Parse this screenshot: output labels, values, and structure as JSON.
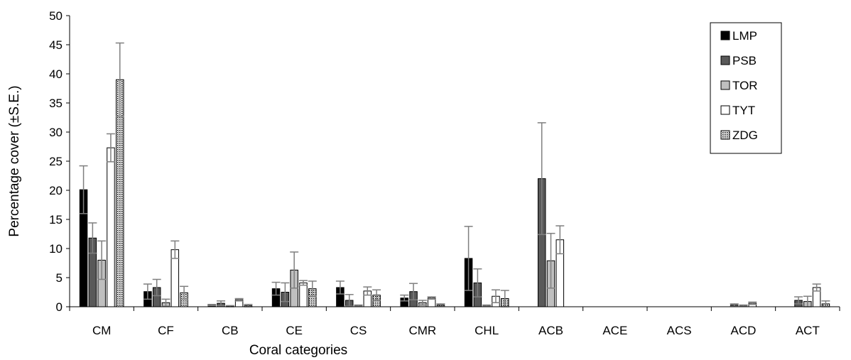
{
  "chart_data": {
    "type": "bar",
    "title": "",
    "xlabel": "Coral categories",
    "ylabel": "Percentage cover (±S.E.)",
    "ylim": [
      0,
      50
    ],
    "yticks": [
      "0",
      "5",
      "10",
      "15",
      "20",
      "25",
      "30",
      "35",
      "40",
      "45",
      "50"
    ],
    "grid": false,
    "legend_position": "top-right",
    "categories": [
      "CM",
      "CF",
      "CB",
      "CE",
      "CS",
      "CMR",
      "CHL",
      "ACB",
      "ACE",
      "ACS",
      "ACD",
      "ACT"
    ],
    "series": [
      {
        "name": "LMP",
        "fill": "#000000",
        "values": [
          20.1,
          2.6,
          0.3,
          3.1,
          3.3,
          1.5,
          8.3,
          0.0,
          0.0,
          0.0,
          0.0,
          0.0
        ],
        "errors": [
          4.1,
          1.3,
          0.1,
          1.1,
          1.1,
          0.5,
          5.5,
          0.0,
          0.0,
          0.0,
          0.0,
          0.0
        ]
      },
      {
        "name": "PSB",
        "fill": "#595959",
        "values": [
          11.8,
          3.3,
          0.6,
          2.5,
          1.1,
          2.6,
          4.1,
          22.0,
          0.0,
          0.0,
          0.3,
          1.1
        ],
        "errors": [
          2.6,
          1.4,
          0.4,
          1.6,
          1.0,
          1.4,
          2.4,
          9.6,
          0.0,
          0.0,
          0.2,
          0.6
        ]
      },
      {
        "name": "TOR",
        "fill": "#bfbfbf",
        "values": [
          8.0,
          0.7,
          0.1,
          6.3,
          0.2,
          0.7,
          0.2,
          7.9,
          0.0,
          0.0,
          0.2,
          0.9
        ],
        "errors": [
          3.3,
          0.6,
          0.1,
          3.1,
          0.1,
          0.4,
          0.1,
          4.7,
          0.0,
          0.0,
          0.1,
          0.9
        ]
      },
      {
        "name": "TYT",
        "fill": "#ffffff",
        "values": [
          27.3,
          9.8,
          1.2,
          4.1,
          2.7,
          1.5,
          1.8,
          11.5,
          0.0,
          0.0,
          0.6,
          3.3
        ],
        "errors": [
          2.4,
          1.5,
          0.2,
          0.4,
          0.7,
          0.2,
          1.1,
          2.4,
          0.0,
          0.0,
          0.2,
          0.6
        ]
      },
      {
        "name": "ZDG",
        "fill": "dotted",
        "values": [
          39.0,
          2.4,
          0.2,
          3.1,
          2.0,
          0.3,
          1.4,
          0.0,
          0.0,
          0.0,
          0.0,
          0.5
        ],
        "errors": [
          6.3,
          1.1,
          0.2,
          1.3,
          0.9,
          0.2,
          1.4,
          0.0,
          0.0,
          0.0,
          0.0,
          0.5
        ]
      }
    ]
  }
}
